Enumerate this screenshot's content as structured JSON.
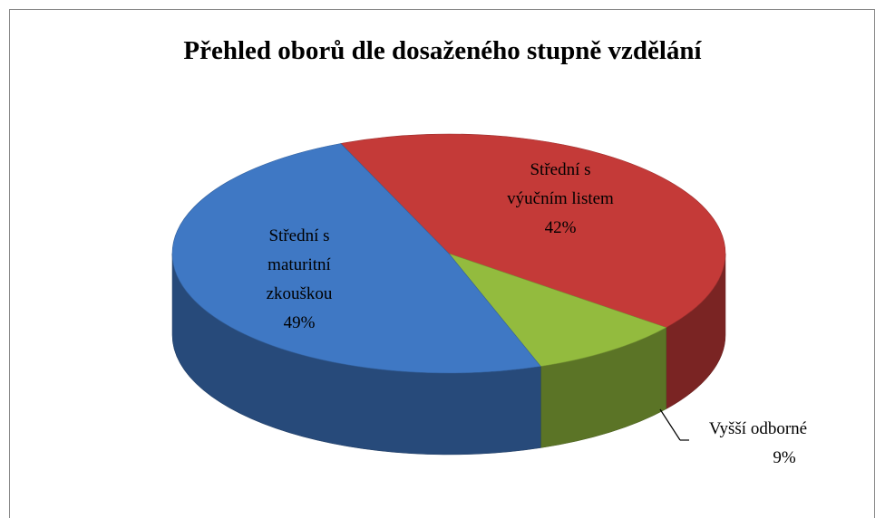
{
  "chart_data": {
    "type": "pie",
    "title": "Přehled oborů dle dosaženého stupně vzdělání",
    "categories": [
      "Střední s výučním listem",
      "Vyšší odborné",
      "Střední s maturitní zkouškou"
    ],
    "values": [
      42,
      9,
      49
    ],
    "value_labels": [
      "42%",
      "9%",
      "49%"
    ],
    "colors": [
      "#c43a38",
      "#93bb3e",
      "#3f78c4"
    ]
  }
}
